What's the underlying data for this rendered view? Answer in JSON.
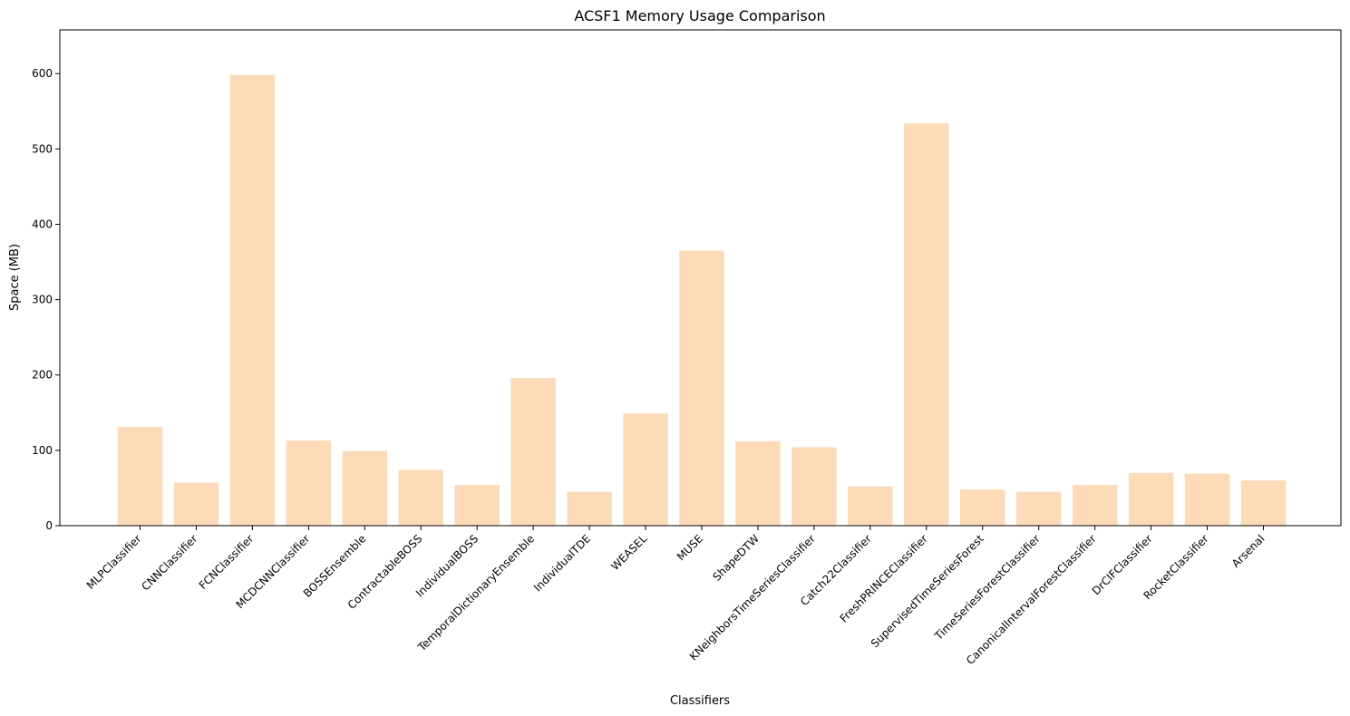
{
  "chart_data": {
    "type": "bar",
    "title": "ACSF1 Memory Usage Comparison",
    "xlabel": "Classifiers",
    "ylabel": "Space (MB)",
    "ylim": [
      0,
      658
    ],
    "yticks": [
      0,
      100,
      200,
      300,
      400,
      500,
      600
    ],
    "grid": false,
    "bar_color": "#FDDBB9",
    "categories": [
      "MLPClassifier",
      "CNNClassifier",
      "FCNClassifier",
      "MCDCNNClassifier",
      "BOSSEnsemble",
      "ContractableBOSS",
      "IndividualBOSS",
      "TemporalDictionaryEnsemble",
      "IndividualTDE",
      "WEASEL",
      "MUSE",
      "ShapeDTW",
      "KNeighborsTimeSeriesClassifier",
      "Catch22Classifier",
      "FreshPRINCEClassifier",
      "SupervisedTimeSeriesForest",
      "TimeSeriesForestClassifier",
      "CanonicalIntervalForestClassifier",
      "DrCIFClassifier",
      "RocketClassifier",
      "Arsenal"
    ],
    "values": [
      131,
      57,
      598,
      113,
      99,
      74,
      54,
      196,
      45,
      149,
      365,
      112,
      104,
      52,
      534,
      48,
      45,
      54,
      70,
      69,
      60
    ]
  }
}
